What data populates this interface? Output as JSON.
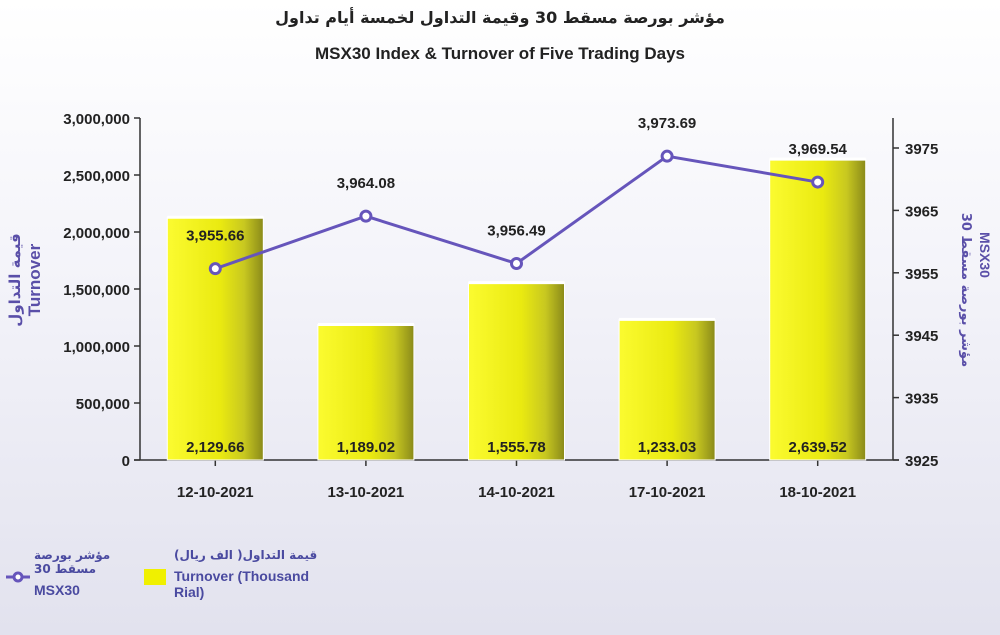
{
  "title_ar": "مؤشر بورصة مسقط 30 وقيمة التداول لخمسة أيام تداول",
  "title_en": "MSX30 Index & Turnover of Five Trading Days",
  "chart_data": {
    "type": "bar+line",
    "categories": [
      "12-10-2021",
      "13-10-2021",
      "14-10-2021",
      "17-10-2021",
      "18-10-2021"
    ],
    "series": [
      {
        "name": "Turnover (Thousand Rial)",
        "type": "bar",
        "axis": "left",
        "values": [
          2129.66,
          1189.02,
          1555.78,
          1233.03,
          2639.52
        ],
        "labels": [
          "2,129.66",
          "1,189.02",
          "1,555.78",
          "1,233.03",
          "2,639.52"
        ],
        "color": "#f0f000"
      },
      {
        "name": "MSX30",
        "type": "line",
        "axis": "right",
        "values": [
          3955.66,
          3964.08,
          3956.49,
          3973.69,
          3969.54
        ],
        "labels": [
          "3,955.66",
          "3,964.08",
          "3,956.49",
          "3,973.69",
          "3,969.54"
        ],
        "color": "#6655bb"
      }
    ],
    "y_left": {
      "label_ar": "قيمة التداول",
      "label_en": "Turnover",
      "ylim": [
        0,
        3000
      ],
      "ticks": [
        0,
        500,
        1000,
        1500,
        2000,
        2500,
        3000
      ],
      "tick_labels": [
        "0",
        "500,000",
        "1,000,000",
        "1,500,000",
        "2,000,000",
        "2,500,000",
        "3,000,000"
      ]
    },
    "y_right": {
      "label_ar": "مؤشر بورصة مسقط 30",
      "label_en": "MSX30",
      "ylim": [
        3925,
        3980
      ],
      "ticks": [
        3925,
        3935,
        3945,
        3955,
        3965,
        3975
      ],
      "tick_labels": [
        "3925",
        "3935",
        "3945",
        "3955",
        "3965",
        "3975"
      ]
    },
    "grid": false,
    "legend_position": "bottom-left"
  },
  "legend": {
    "line_ar": "مؤشر بورصة مسقط 30",
    "line_en": "MSX30",
    "bar_ar": "قيمة التداول( الف ريال)",
    "bar_en": "Turnover (Thousand Rial)"
  },
  "colors": {
    "bar": "#f0f000",
    "bar_dark": "#8a8a1a",
    "line": "#6655bb",
    "axis_label": "#5a4fa8"
  }
}
